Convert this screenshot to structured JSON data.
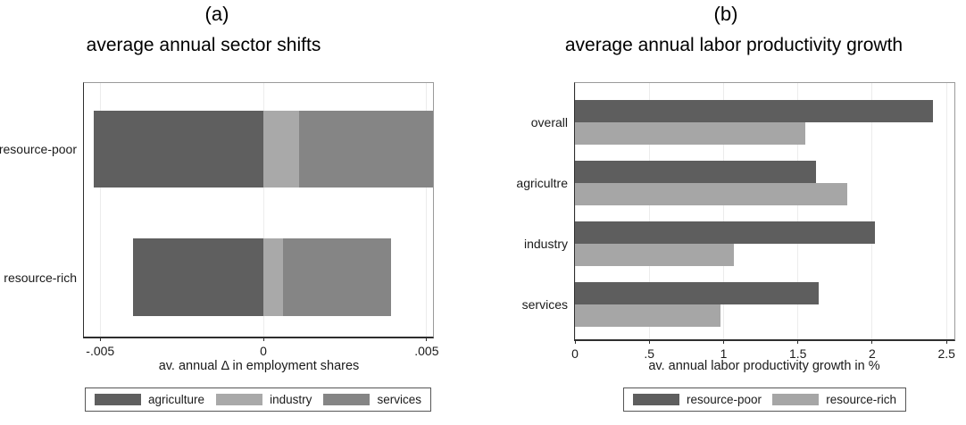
{
  "figure": {
    "background": "#ffffff",
    "text_color": "#1a1a1a"
  },
  "chart_data": [
    {
      "panel_letter": "(a)",
      "title": "average annual sector shifts",
      "type": "bar",
      "subtype": "horizontal-stacked",
      "categories": [
        "resource-poor",
        "resource-rich"
      ],
      "series": [
        {
          "name": "agriculture",
          "color": "#5f5f5f",
          "values": [
            -0.0052,
            -0.004
          ]
        },
        {
          "name": "industry",
          "color": "#a9a9a9",
          "values": [
            0.0011,
            0.0006
          ]
        },
        {
          "name": "services",
          "color": "#858585",
          "values": [
            0.0041,
            0.0033
          ]
        }
      ],
      "xlabel": "av. annual Δ in employment shares",
      "xlim": [
        -0.0055,
        0.00525
      ],
      "xticks": [
        {
          "value": -0.005,
          "label": "-.005"
        },
        {
          "value": 0,
          "label": "0"
        },
        {
          "value": 0.005,
          "label": ".005"
        }
      ],
      "grid": true,
      "legend_position": "bottom"
    },
    {
      "panel_letter": "(b)",
      "title": "average annual labor productivity growth",
      "type": "bar",
      "subtype": "horizontal-grouped",
      "categories": [
        "overall",
        "agricultre",
        "industry",
        "services"
      ],
      "series": [
        {
          "name": "resource-poor",
          "color": "#5e5e5e",
          "values": [
            2.41,
            1.62,
            2.02,
            1.64
          ]
        },
        {
          "name": "resource-rich",
          "color": "#a6a6a6",
          "values": [
            1.55,
            1.83,
            1.07,
            0.98
          ]
        }
      ],
      "xlabel": "av. annual labor productivity growth in %",
      "xlim": [
        0,
        2.565
      ],
      "xticks": [
        {
          "value": 0,
          "label": "0"
        },
        {
          "value": 0.5,
          "label": ".5"
        },
        {
          "value": 1,
          "label": "1"
        },
        {
          "value": 1.5,
          "label": "1.5"
        },
        {
          "value": 2,
          "label": "2"
        },
        {
          "value": 2.5,
          "label": "2.5"
        }
      ],
      "grid": true,
      "legend_position": "bottom"
    }
  ]
}
